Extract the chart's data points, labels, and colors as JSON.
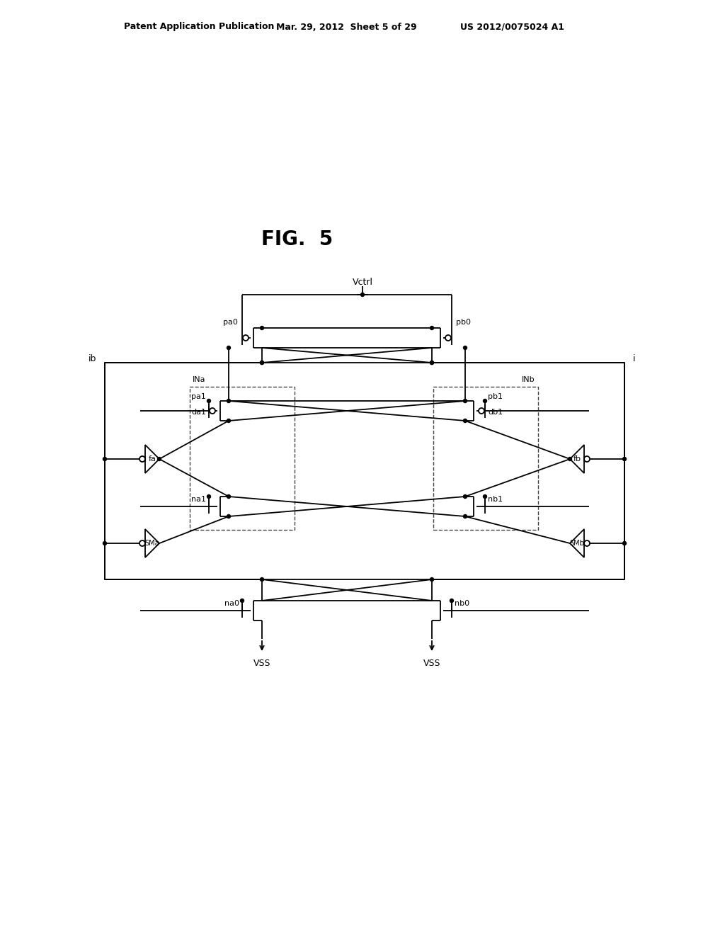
{
  "header_left": "Patent Application Publication",
  "header_mid": "Mar. 29, 2012  Sheet 5 of 29",
  "header_right": "US 2012/0075024 A1",
  "fig_label": "FIG.  5",
  "background": "#ffffff",
  "line_color": "#000000",
  "text_color": "#000000"
}
